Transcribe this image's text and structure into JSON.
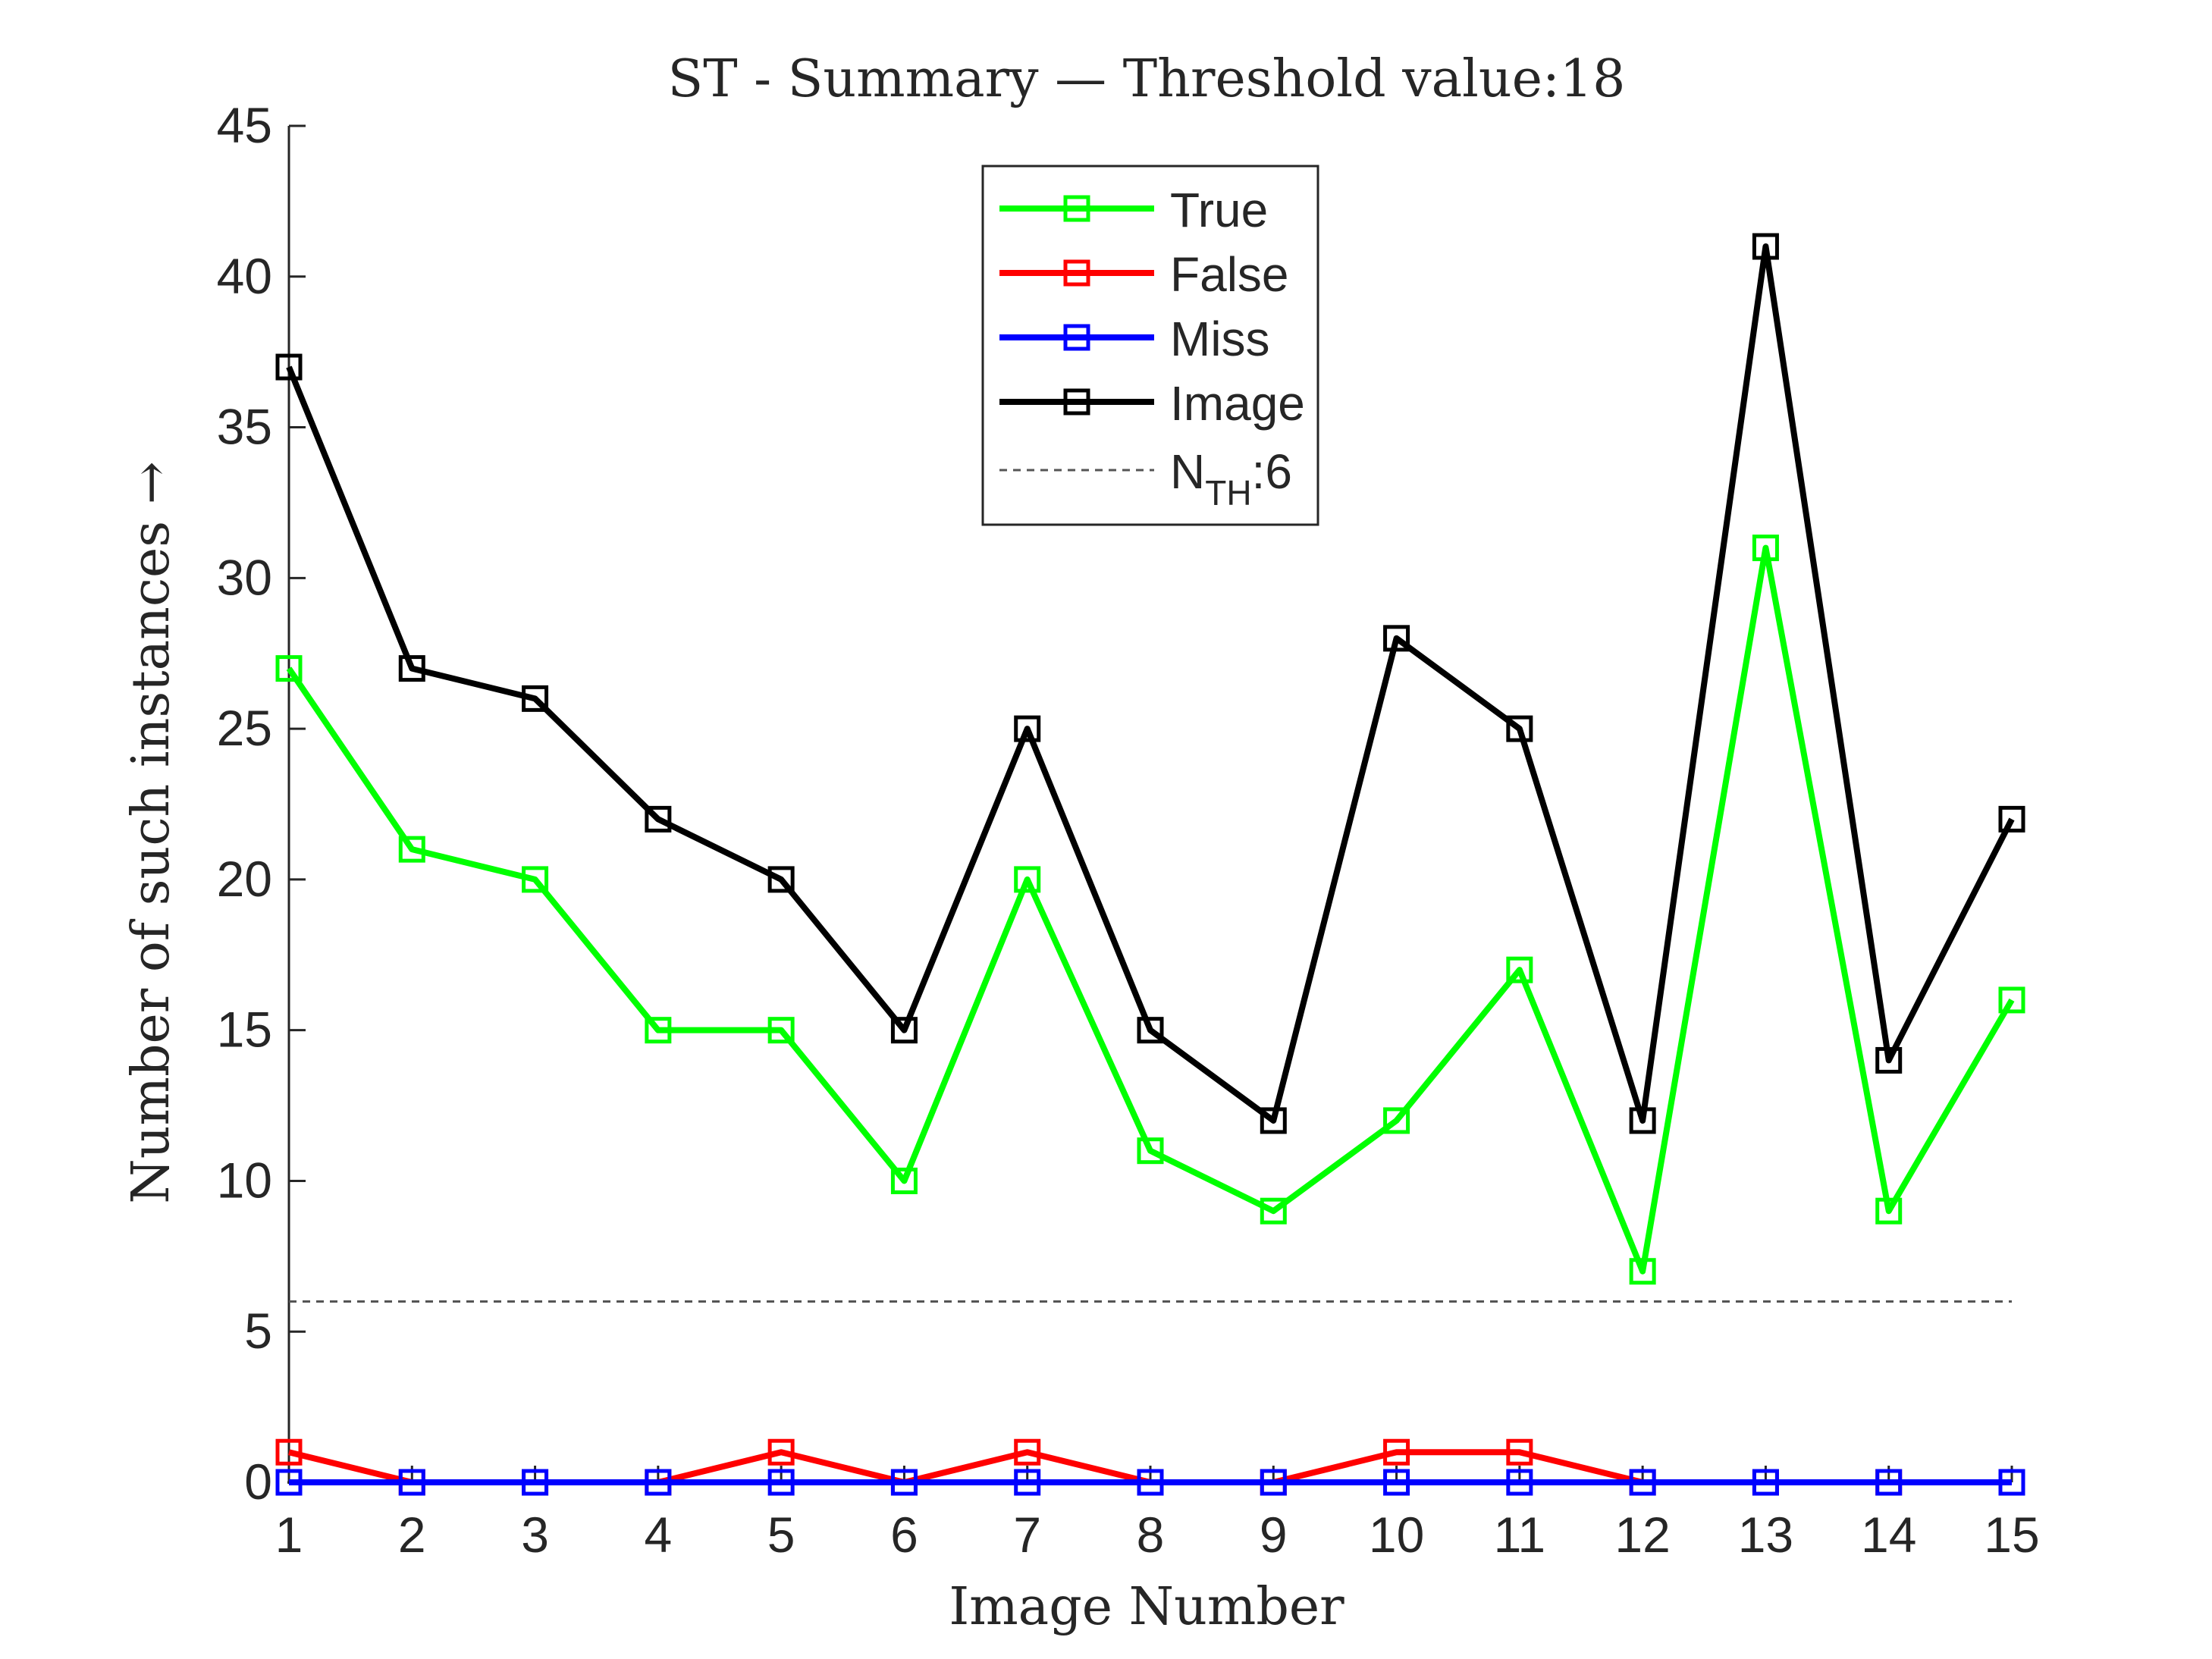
{
  "chart_data": {
    "type": "line",
    "title": "ST - Summary — Threshold value:18",
    "xlabel": "Image Number",
    "ylabel": "Number of such instances →",
    "x": [
      1,
      2,
      3,
      4,
      5,
      6,
      7,
      8,
      9,
      10,
      11,
      12,
      13,
      14,
      15
    ],
    "xlim": [
      1,
      15
    ],
    "ylim": [
      0,
      45
    ],
    "yticks": [
      0,
      5,
      10,
      15,
      20,
      25,
      30,
      35,
      40,
      45
    ],
    "grid": false,
    "legend_position": "top-center",
    "series": [
      {
        "name": "True",
        "color": "#00ff00",
        "marker": "square",
        "values": [
          27,
          21,
          20,
          15,
          15,
          10,
          20,
          11,
          9,
          12,
          17,
          7,
          31,
          9,
          16
        ]
      },
      {
        "name": "False",
        "color": "#ff0000",
        "marker": "square",
        "values": [
          1,
          0,
          0,
          0,
          1,
          0,
          1,
          0,
          0,
          1,
          1,
          0,
          0,
          0,
          0
        ]
      },
      {
        "name": "Miss",
        "color": "#0000ff",
        "marker": "square",
        "values": [
          0,
          0,
          0,
          0,
          0,
          0,
          0,
          0,
          0,
          0,
          0,
          0,
          0,
          0,
          0
        ]
      },
      {
        "name": "Image",
        "color": "#000000",
        "marker": "square",
        "values": [
          37,
          27,
          26,
          22,
          20,
          15,
          25,
          15,
          12,
          28,
          25,
          12,
          41,
          14,
          22
        ]
      }
    ],
    "threshold_line": {
      "label_main": "N",
      "label_sub": "TH",
      "label_suffix": ":6",
      "value": 6,
      "color": "#555555",
      "style": "dashed"
    }
  }
}
